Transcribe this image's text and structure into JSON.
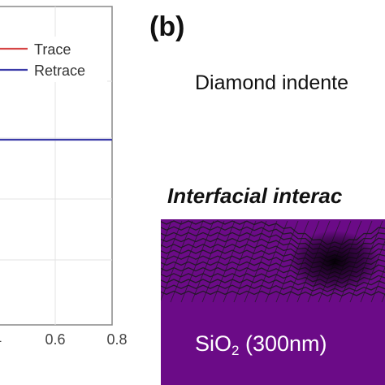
{
  "panel_b": {
    "label": "(b)",
    "indenter_text": "Diamond indente",
    "interface_text": "Interfacial interac",
    "substrate": {
      "formula_main": "SiO",
      "formula_sub": "2",
      "thickness": " (300nm)"
    },
    "colors": {
      "substrate": "#6b0b87",
      "graphene_mesh": "#1a1a1a"
    }
  },
  "chart_data": {
    "type": "line",
    "xlim": [
      0.4,
      0.8
    ],
    "x_ticks": [
      "0.6",
      "0.8"
    ],
    "series": [
      {
        "name": "Trace",
        "color": "#d64545",
        "x": [
          0.4,
          0.8
        ],
        "y": [
          0.5,
          0.5
        ]
      },
      {
        "name": "Retrace",
        "color": "#3a3aa8",
        "x": [
          0.4,
          0.8
        ],
        "y": [
          0.5,
          0.5
        ]
      }
    ],
    "legend": "top-right",
    "grid": true
  }
}
